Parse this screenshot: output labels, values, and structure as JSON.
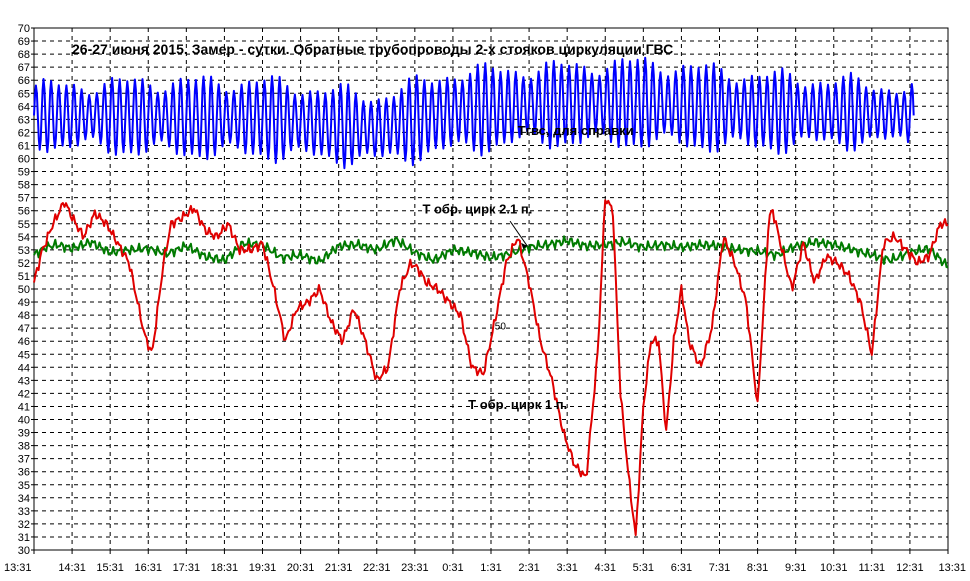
{
  "chart_data": {
    "type": "line",
    "title": "26-27 июня 2015. Замер - сутки. Обратные трубопроводы 2-х стояков циркуляции ГВС",
    "xlabel": "",
    "ylabel": "",
    "ylim": [
      30,
      70
    ],
    "yticks": [
      30,
      31,
      32,
      33,
      34,
      35,
      36,
      37,
      38,
      39,
      40,
      41,
      42,
      43,
      44,
      45,
      46,
      47,
      48,
      49,
      50,
      51,
      52,
      53,
      54,
      55,
      56,
      57,
      58,
      59,
      60,
      61,
      62,
      63,
      64,
      65,
      66,
      67,
      68,
      69,
      70
    ],
    "xticks": [
      "13:31",
      "14:31",
      "15:31",
      "16:31",
      "17:31",
      "18:31",
      "19:31",
      "20:31",
      "21:31",
      "22:31",
      "23:31",
      "0:31",
      "1:31",
      "2:31",
      "3:31",
      "4:31",
      "5:31",
      "6:31",
      "7:31",
      "8:31",
      "9:31",
      "10:31",
      "11:31",
      "12:31",
      "13:31"
    ],
    "grid": true,
    "annotations": [
      {
        "text": "Tгвс, для справки",
        "target_series": "Tgvs"
      },
      {
        "text": "T обр. цирк 2.1 п.",
        "target_series": "T2"
      },
      {
        "text": "T обр. цирк 1 п.",
        "target_series": "T1"
      },
      {
        "text": "50",
        "target_series": "T1"
      }
    ],
    "series": [
      {
        "name": "Tgvs",
        "color": "#0000ff",
        "oscillating": true,
        "x_range": [
          0,
          23.1
        ],
        "period": 0.2,
        "center": [
          [
            0,
            63.3
          ],
          [
            3,
            63.2
          ],
          [
            6,
            63.1
          ],
          [
            9,
            62.3
          ],
          [
            11,
            63.6
          ],
          [
            13,
            64.1
          ],
          [
            16,
            64.3
          ],
          [
            19,
            63.6
          ],
          [
            21,
            63.6
          ],
          [
            23.1,
            63.3
          ]
        ],
        "amplitude": [
          [
            0,
            2.1
          ],
          [
            3,
            2.6
          ],
          [
            6,
            2.7
          ],
          [
            9,
            2.4
          ],
          [
            11,
            2.9
          ],
          [
            13,
            2.7
          ],
          [
            16,
            3.0
          ],
          [
            19,
            2.7
          ],
          [
            21,
            2.3
          ],
          [
            23.1,
            2.0
          ]
        ]
      },
      {
        "name": "T2",
        "color": "#007a00",
        "x": [
          0,
          0.3,
          0.6,
          1,
          1.5,
          2,
          2.5,
          3,
          3.5,
          4,
          4.5,
          5,
          5.5,
          6,
          6.5,
          7,
          7.5,
          8,
          8.5,
          9,
          9.5,
          10,
          10.5,
          11,
          11.5,
          12,
          12.5,
          13,
          13.5,
          14,
          14.5,
          15,
          15.5,
          16,
          16.5,
          17,
          17.5,
          18,
          18.5,
          19,
          19.5,
          20,
          20.5,
          21,
          21.5,
          22,
          22.5,
          23,
          23.5,
          24
        ],
        "y": [
          52.6,
          53.2,
          53.4,
          53.1,
          53.6,
          52.8,
          53.0,
          53.1,
          52.7,
          53.3,
          52.5,
          52.2,
          53.5,
          53.4,
          52.4,
          52.6,
          52.1,
          53.3,
          53.4,
          53.0,
          53.8,
          52.8,
          52.2,
          53.0,
          52.8,
          52.4,
          52.7,
          53.2,
          53.4,
          53.7,
          53.3,
          53.4,
          53.6,
          53.2,
          53.4,
          53.2,
          53.4,
          53.3,
          53.0,
          52.9,
          52.6,
          53.3,
          53.6,
          53.4,
          53.0,
          52.6,
          52.2,
          52.8,
          53.1,
          51.7
        ]
      },
      {
        "name": "T1",
        "color": "#e00000",
        "x": [
          0,
          0.2,
          0.5,
          0.8,
          1.0,
          1.3,
          1.6,
          1.9,
          2.2,
          2.5,
          2.9,
          3.1,
          3.4,
          3.6,
          3.9,
          4.2,
          4.5,
          4.8,
          5.1,
          5.4,
          5.7,
          6.0,
          6.3,
          6.6,
          6.9,
          7.2,
          7.5,
          7.8,
          8.1,
          8.4,
          8.7,
          9.0,
          9.3,
          9.6,
          9.9,
          10.1,
          10.3,
          10.6,
          10.9,
          11.2,
          11.5,
          11.8,
          12.1,
          12.4,
          12.7,
          13.0,
          13.3,
          13.6,
          13.9,
          14.2,
          14.5,
          14.8,
          15.0,
          15.2,
          15.4,
          15.6,
          15.8,
          16.0,
          16.2,
          16.4,
          16.6,
          16.8,
          17.0,
          17.2,
          17.5,
          17.8,
          18.1,
          18.4,
          18.7,
          19.0,
          19.3,
          19.4,
          19.6,
          19.9,
          20.2,
          20.5,
          20.8,
          21.1,
          21.4,
          21.7,
          22.0,
          22.3,
          22.6,
          22.9,
          23.2,
          23.5,
          23.8,
          24.0
        ],
        "y": [
          50.5,
          52.8,
          55.0,
          56.7,
          55.5,
          54.0,
          55.8,
          55.0,
          53.5,
          52.0,
          46.5,
          45.0,
          52.0,
          55.0,
          55.5,
          56.2,
          54.5,
          54.0,
          55.0,
          53.0,
          53.0,
          53.5,
          50.0,
          46.0,
          48.5,
          49.0,
          50.0,
          47.5,
          46.0,
          48.5,
          46.0,
          43.0,
          44.0,
          50.0,
          52.0,
          51.5,
          50.5,
          50.0,
          49.0,
          48.0,
          44.0,
          43.5,
          47.5,
          52.0,
          54.0,
          50.5,
          46.0,
          43.0,
          39.0,
          36.5,
          35.5,
          45.0,
          57.0,
          56.0,
          42.0,
          36.0,
          31.0,
          41.0,
          46.0,
          46.0,
          39.0,
          46.0,
          50.0,
          46.0,
          44.0,
          47.0,
          54.0,
          52.0,
          49.0,
          41.0,
          55.5,
          56.0,
          53.5,
          50.0,
          53.5,
          50.5,
          52.5,
          52.0,
          51.0,
          49.0,
          45.0,
          53.5,
          54.0,
          53.0,
          52.0,
          52.5,
          55.0,
          55.0
        ]
      }
    ]
  }
}
